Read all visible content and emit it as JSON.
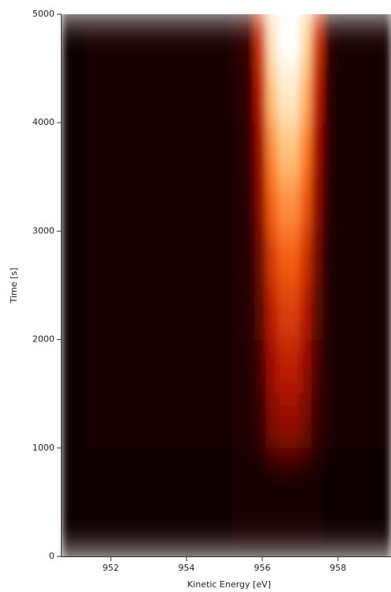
{
  "chart_data": {
    "type": "heatmap",
    "x_label": "Kinetic Energy [eV]",
    "y_label": "Time [s]",
    "x": [
      950.85,
      951.15,
      951.45,
      951.75,
      952.05,
      952.35,
      952.65,
      952.95,
      953.25,
      953.55,
      953.85,
      954.15,
      954.45,
      954.75,
      955.05,
      955.35,
      955.65,
      955.95,
      956.25,
      956.55,
      956.85,
      957.15,
      957.45,
      957.75,
      958.05,
      958.35,
      958.65,
      958.95,
      959.25
    ],
    "y": [
      250,
      750,
      1250,
      1750,
      2250,
      2750,
      3250,
      3750,
      4250,
      4750
    ],
    "z": [
      [
        3,
        3,
        3,
        3,
        3,
        3,
        3,
        3,
        3,
        3,
        3,
        3,
        3,
        3,
        3,
        4,
        4,
        4,
        4,
        4,
        4,
        4,
        4,
        3,
        3,
        3,
        3,
        3,
        3
      ],
      [
        3,
        3,
        3,
        3,
        3,
        3,
        3,
        3,
        3,
        3,
        3,
        3,
        3,
        3,
        3,
        4,
        4,
        4,
        4,
        4,
        4,
        4,
        4,
        3,
        3,
        3,
        3,
        3,
        3
      ],
      [
        3,
        3,
        5,
        5,
        5,
        5,
        5,
        5,
        5,
        5,
        5,
        5,
        5,
        5,
        5,
        7,
        10,
        19,
        31,
        35,
        35,
        29,
        19,
        9,
        4,
        4,
        4,
        4,
        4
      ],
      [
        3,
        3,
        5,
        5,
        5,
        5,
        5,
        5,
        5,
        5,
        5,
        5,
        5,
        5,
        5,
        8,
        11,
        22,
        37,
        43,
        43,
        35,
        22,
        10,
        4,
        4,
        4,
        4,
        4
      ],
      [
        3,
        3,
        5,
        5,
        5,
        5,
        5,
        5,
        5,
        5,
        5,
        5,
        5,
        5,
        5,
        9,
        12,
        25,
        43,
        50,
        50,
        41,
        25,
        10,
        4,
        4,
        4,
        4,
        4
      ],
      [
        3,
        3,
        5,
        5,
        5,
        5,
        5,
        5,
        5,
        5,
        5,
        5,
        5,
        5,
        5,
        9,
        13,
        28,
        49,
        57,
        57,
        47,
        28,
        11,
        4,
        4,
        4,
        4,
        4
      ],
      [
        3,
        3,
        5,
        5,
        5,
        5,
        5,
        5,
        5,
        5,
        5,
        5,
        5,
        5,
        5,
        10,
        14,
        33,
        58,
        67,
        67,
        55,
        33,
        12,
        4,
        4,
        4,
        4,
        4
      ],
      [
        3,
        3,
        5,
        5,
        5,
        5,
        5,
        5,
        5,
        5,
        5,
        5,
        5,
        5,
        5,
        11,
        16,
        37,
        66,
        77,
        77,
        63,
        37,
        14,
        4,
        4,
        4,
        4,
        4
      ],
      [
        3,
        3,
        5,
        5,
        5,
        5,
        5,
        5,
        5,
        5,
        5,
        5,
        5,
        5,
        5,
        12,
        18,
        43,
        77,
        90,
        90,
        73,
        43,
        15,
        4,
        4,
        4,
        4,
        4
      ],
      [
        3,
        3,
        5,
        5,
        5,
        5,
        5,
        5,
        5,
        5,
        5,
        5,
        5,
        5,
        5,
        13,
        20,
        49,
        88,
        100,
        100,
        83,
        49,
        17,
        4,
        4,
        4,
        4,
        4
      ]
    ],
    "zlim": [
      0,
      100
    ],
    "colormap": [
      "#0a0000",
      "#3a0400",
      "#b01200",
      "#ff6a12",
      "#ffd28a",
      "#ffffff"
    ],
    "xlim": [
      950.7,
      959.4
    ],
    "ylim": [
      0,
      5000
    ],
    "xticks": [
      952,
      954,
      956,
      958
    ],
    "yticks": [
      0,
      1000,
      2000,
      3000,
      4000,
      5000
    ]
  }
}
